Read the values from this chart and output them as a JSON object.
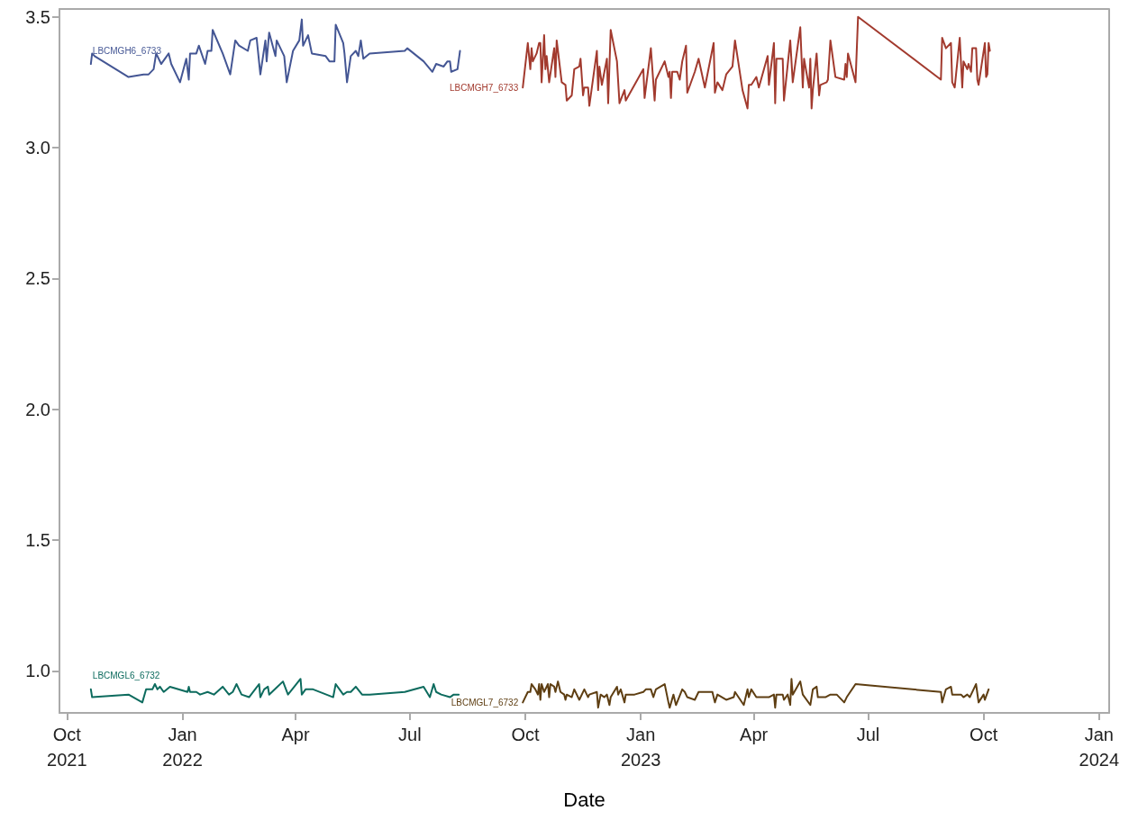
{
  "chart_data": {
    "type": "line",
    "xlabel": "Date",
    "xlim": [
      "2021-09-25",
      "2024-01-09"
    ],
    "ylim": [
      0.84,
      3.53
    ],
    "xticks": [
      {
        "value": "2021-10-01",
        "label": "Oct 2021"
      },
      {
        "value": "2022-01-01",
        "label": "Jan 2022"
      },
      {
        "value": "2022-04-01",
        "label": "Apr"
      },
      {
        "value": "2022-07-01",
        "label": "Jul"
      },
      {
        "value": "2022-10-01",
        "label": "Oct"
      },
      {
        "value": "2023-01-01",
        "label": "Jan 2023"
      },
      {
        "value": "2023-04-01",
        "label": "Apr"
      },
      {
        "value": "2023-07-01",
        "label": "Jul"
      },
      {
        "value": "2023-10-01",
        "label": "Oct"
      },
      {
        "value": "2024-01-01",
        "label": "Jan 2024"
      }
    ],
    "yticks": [
      {
        "value": 1,
        "label": "1.0"
      },
      1.5,
      {
        "value": 2,
        "label": "2.0"
      },
      2.5,
      {
        "value": 3,
        "label": "3.0"
      },
      3.5
    ],
    "grid": false,
    "legend": false,
    "marker": "none",
    "line_style": "solid",
    "series": [
      {
        "name": "LBCMGH6_6733",
        "color": "#445694",
        "x": [
          "2021-10-20",
          "2021-10-21",
          "2021-10-23",
          "2021-11-19",
          "2021-12-01",
          "2021-12-05",
          "2021-12-09",
          "2021-12-11",
          "2021-12-15",
          "2021-12-21",
          "2021-12-23",
          "2021-12-30",
          "2022-01-04",
          "2022-01-06",
          "2022-01-07",
          "2022-01-12",
          "2022-01-14",
          "2022-01-19",
          "2022-01-21",
          "2022-01-24",
          "2022-01-25",
          "2022-02-02",
          "2022-02-08",
          "2022-02-12",
          "2022-02-15",
          "2022-02-22",
          "2022-02-24",
          "2022-03-01",
          "2022-03-04",
          "2022-03-08",
          "2022-03-09",
          "2022-03-11",
          "2022-03-16",
          "2022-03-17",
          "2022-03-23",
          "2022-03-25",
          "2022-03-30",
          "2022-04-04",
          "2022-04-06",
          "2022-04-07",
          "2022-04-11",
          "2022-04-14",
          "2022-04-25",
          "2022-04-28",
          "2022-05-02",
          "2022-05-03",
          "2022-05-09",
          "2022-05-10",
          "2022-05-12",
          "2022-05-15",
          "2022-05-19",
          "2022-05-21",
          "2022-05-23",
          "2022-05-25",
          "2022-05-30",
          "2022-06-27",
          "2022-06-29",
          "2022-07-12",
          "2022-07-19",
          "2022-07-22",
          "2022-07-28",
          "2022-07-31",
          "2022-08-02",
          "2022-08-03",
          "2022-08-08",
          "2022-08-10"
        ],
        "values": [
          3.32,
          3.36,
          3.35,
          3.27,
          3.28,
          3.28,
          3.3,
          3.36,
          3.32,
          3.36,
          3.32,
          3.25,
          3.34,
          3.26,
          3.36,
          3.36,
          3.39,
          3.32,
          3.37,
          3.37,
          3.45,
          3.36,
          3.28,
          3.41,
          3.39,
          3.37,
          3.41,
          3.42,
          3.28,
          3.41,
          3.33,
          3.44,
          3.35,
          3.41,
          3.35,
          3.25,
          3.37,
          3.41,
          3.49,
          3.39,
          3.43,
          3.36,
          3.35,
          3.33,
          3.33,
          3.47,
          3.4,
          3.36,
          3.25,
          3.35,
          3.37,
          3.35,
          3.41,
          3.34,
          3.36,
          3.37,
          3.38,
          3.33,
          3.29,
          3.32,
          3.31,
          3.33,
          3.33,
          3.29,
          3.3,
          3.37
        ]
      },
      {
        "name": "LBCMGH7_6733",
        "color": "#a23a2e",
        "x": [
          "2022-09-29",
          "2022-10-03",
          "2022-10-05",
          "2022-10-06",
          "2022-10-07",
          "2022-10-10",
          "2022-10-12",
          "2022-10-13",
          "2022-10-14",
          "2022-10-16",
          "2022-10-17",
          "2022-10-18",
          "2022-10-20",
          "2022-10-24",
          "2022-10-25",
          "2022-10-26",
          "2022-10-30",
          "2022-11-02",
          "2022-11-03",
          "2022-11-07",
          "2022-11-09",
          "2022-11-13",
          "2022-11-14",
          "2022-11-16",
          "2022-11-17",
          "2022-11-20",
          "2022-11-21",
          "2022-11-27",
          "2022-11-28",
          "2022-11-29",
          "2022-12-01",
          "2022-12-05",
          "2022-12-06",
          "2022-12-08",
          "2022-12-13",
          "2022-12-15",
          "2022-12-19",
          "2022-12-20",
          "2023-01-03",
          "2023-01-04",
          "2023-01-09",
          "2023-01-12",
          "2023-01-13",
          "2023-01-20",
          "2023-01-23",
          "2023-01-24",
          "2023-01-25",
          "2023-01-26",
          "2023-01-30",
          "2023-02-01",
          "2023-02-03",
          "2023-02-06",
          "2023-02-07",
          "2023-02-13",
          "2023-02-16",
          "2023-02-21",
          "2023-02-28",
          "2023-03-01",
          "2023-03-03",
          "2023-03-07",
          "2023-03-10",
          "2023-03-15",
          "2023-03-17",
          "2023-03-23",
          "2023-03-27",
          "2023-03-28",
          "2023-03-30",
          "2023-04-03",
          "2023-04-05",
          "2023-04-12",
          "2023-04-13",
          "2023-04-17",
          "2023-04-18",
          "2023-04-19",
          "2023-04-24",
          "2023-04-25",
          "2023-04-30",
          "2023-05-02",
          "2023-05-08",
          "2023-05-10",
          "2023-05-11",
          "2023-05-15",
          "2023-05-16",
          "2023-05-17",
          "2023-05-18",
          "2023-05-21",
          "2023-05-23",
          "2023-05-24",
          "2023-05-29",
          "2023-05-30",
          "2023-06-01",
          "2023-06-05",
          "2023-06-12",
          "2023-06-13",
          "2023-06-14",
          "2023-06-15",
          "2023-06-21",
          "2023-06-23",
          "2023-08-28",
          "2023-08-29",
          "2023-09-01",
          "2023-09-05",
          "2023-09-06",
          "2023-09-08",
          "2023-09-12",
          "2023-09-14",
          "2023-09-15",
          "2023-09-18",
          "2023-09-19",
          "2023-09-21",
          "2023-09-22",
          "2023-09-25",
          "2023-09-26",
          "2023-09-27",
          "2023-10-02",
          "2023-10-03",
          "2023-10-04",
          "2023-10-05",
          "2023-10-06"
        ],
        "values": [
          3.23,
          3.4,
          3.3,
          3.38,
          3.33,
          3.36,
          3.4,
          3.4,
          3.25,
          3.43,
          3.3,
          3.35,
          3.25,
          3.38,
          3.27,
          3.41,
          3.25,
          3.24,
          3.18,
          3.2,
          3.3,
          3.31,
          3.34,
          3.2,
          3.23,
          3.23,
          3.16,
          3.37,
          3.22,
          3.31,
          3.24,
          3.34,
          3.17,
          3.45,
          3.33,
          3.17,
          3.22,
          3.18,
          3.3,
          3.19,
          3.38,
          3.18,
          3.26,
          3.33,
          3.27,
          3.29,
          3.19,
          3.29,
          3.29,
          3.26,
          3.33,
          3.39,
          3.21,
          3.29,
          3.34,
          3.23,
          3.4,
          3.21,
          3.25,
          3.22,
          3.28,
          3.31,
          3.41,
          3.22,
          3.15,
          3.24,
          3.24,
          3.27,
          3.23,
          3.35,
          3.24,
          3.4,
          3.17,
          3.34,
          3.34,
          3.18,
          3.41,
          3.25,
          3.46,
          3.23,
          3.34,
          3.23,
          3.34,
          3.15,
          3.22,
          3.36,
          3.2,
          3.24,
          3.25,
          3.26,
          3.41,
          3.27,
          3.26,
          3.32,
          3.27,
          3.36,
          3.25,
          3.5,
          3.26,
          3.42,
          3.38,
          3.4,
          3.25,
          3.23,
          3.42,
          3.23,
          3.33,
          3.3,
          3.32,
          3.29,
          3.38,
          3.38,
          3.26,
          3.24,
          3.4,
          3.27,
          3.28,
          3.4,
          3.37
        ]
      },
      {
        "name": "LBCMGL6_6732",
        "color": "#0d6b5e",
        "x": [
          "2021-10-20",
          "2021-10-21",
          "2021-11-19",
          "2021-11-30",
          "2021-12-03",
          "2021-12-08",
          "2021-12-10",
          "2021-12-12",
          "2021-12-14",
          "2021-12-17",
          "2021-12-22",
          "2022-01-05",
          "2022-01-06",
          "2022-01-07",
          "2022-01-12",
          "2022-01-15",
          "2022-01-21",
          "2022-01-26",
          "2022-02-02",
          "2022-02-07",
          "2022-02-10",
          "2022-02-13",
          "2022-02-17",
          "2022-02-23",
          "2022-03-03",
          "2022-03-04",
          "2022-03-07",
          "2022-03-10",
          "2022-03-11",
          "2022-03-22",
          "2022-03-26",
          "2022-04-05",
          "2022-04-06",
          "2022-04-09",
          "2022-04-15",
          "2022-05-01",
          "2022-05-03",
          "2022-05-09",
          "2022-05-12",
          "2022-05-15",
          "2022-05-19",
          "2022-05-24",
          "2022-05-30",
          "2022-06-27",
          "2022-07-12",
          "2022-07-17",
          "2022-07-20",
          "2022-07-22",
          "2022-07-26",
          "2022-08-02",
          "2022-08-05",
          "2022-08-09"
        ],
        "values": [
          0.93,
          0.9,
          0.91,
          0.88,
          0.93,
          0.93,
          0.95,
          0.93,
          0.94,
          0.92,
          0.94,
          0.92,
          0.94,
          0.92,
          0.92,
          0.91,
          0.92,
          0.91,
          0.94,
          0.91,
          0.92,
          0.95,
          0.91,
          0.9,
          0.95,
          0.9,
          0.93,
          0.94,
          0.91,
          0.96,
          0.91,
          0.97,
          0.91,
          0.93,
          0.93,
          0.9,
          0.95,
          0.91,
          0.92,
          0.92,
          0.94,
          0.91,
          0.91,
          0.92,
          0.94,
          0.9,
          0.95,
          0.92,
          0.91,
          0.9,
          0.91,
          0.91
        ]
      },
      {
        "name": "LBCMGL7_6732",
        "color": "#5e3e12",
        "x": [
          "2022-09-29",
          "2022-10-03",
          "2022-10-05",
          "2022-10-06",
          "2022-10-09",
          "2022-10-11",
          "2022-10-12",
          "2022-10-13",
          "2022-10-14",
          "2022-10-16",
          "2022-10-19",
          "2022-10-20",
          "2022-10-21",
          "2022-10-24",
          "2022-10-25",
          "2022-10-27",
          "2022-10-29",
          "2022-11-01",
          "2022-11-02",
          "2022-11-03",
          "2022-11-07",
          "2022-11-09",
          "2022-11-13",
          "2022-11-17",
          "2022-11-20",
          "2022-11-21",
          "2022-11-27",
          "2022-11-28",
          "2022-11-30",
          "2022-12-03",
          "2022-12-05",
          "2022-12-07",
          "2022-12-08",
          "2022-12-13",
          "2022-12-14",
          "2022-12-16",
          "2022-12-19",
          "2022-12-20",
          "2022-12-27",
          "2023-01-03",
          "2023-01-05",
          "2023-01-09",
          "2023-01-11",
          "2023-01-13",
          "2023-01-20",
          "2023-01-23",
          "2023-01-24",
          "2023-01-27",
          "2023-01-29",
          "2023-02-03",
          "2023-02-05",
          "2023-02-07",
          "2023-02-13",
          "2023-02-16",
          "2023-02-27",
          "2023-03-01",
          "2023-03-03",
          "2023-03-10",
          "2023-03-16",
          "2023-03-17",
          "2023-03-24",
          "2023-03-27",
          "2023-03-28",
          "2023-03-30",
          "2023-04-03",
          "2023-04-05",
          "2023-04-13",
          "2023-04-17",
          "2023-04-18",
          "2023-04-19",
          "2023-04-24",
          "2023-04-25",
          "2023-04-28",
          "2023-04-30",
          "2023-05-01",
          "2023-05-02",
          "2023-05-08",
          "2023-05-10",
          "2023-05-16",
          "2023-05-18",
          "2023-05-21",
          "2023-05-22",
          "2023-05-24",
          "2023-05-28",
          "2023-06-01",
          "2023-06-05",
          "2023-06-06",
          "2023-06-12",
          "2023-06-14",
          "2023-06-21",
          "2023-08-28",
          "2023-08-29",
          "2023-09-01",
          "2023-09-05",
          "2023-09-06",
          "2023-09-12",
          "2023-09-13",
          "2023-09-15",
          "2023-09-18",
          "2023-09-20",
          "2023-09-25",
          "2023-09-27",
          "2023-10-01",
          "2023-10-02",
          "2023-10-05"
        ],
        "values": [
          0.88,
          0.92,
          0.92,
          0.95,
          0.93,
          0.91,
          0.95,
          0.89,
          0.95,
          0.92,
          0.95,
          0.9,
          0.95,
          0.94,
          0.92,
          0.96,
          0.92,
          0.91,
          0.89,
          0.91,
          0.9,
          0.93,
          0.89,
          0.93,
          0.9,
          0.91,
          0.92,
          0.86,
          0.91,
          0.9,
          0.91,
          0.87,
          0.9,
          0.94,
          0.91,
          0.93,
          0.88,
          0.91,
          0.91,
          0.92,
          0.93,
          0.93,
          0.9,
          0.93,
          0.95,
          0.88,
          0.86,
          0.91,
          0.87,
          0.93,
          0.92,
          0.9,
          0.89,
          0.92,
          0.92,
          0.88,
          0.91,
          0.89,
          0.9,
          0.92,
          0.87,
          0.93,
          0.9,
          0.93,
          0.9,
          0.9,
          0.9,
          0.91,
          0.86,
          0.91,
          0.91,
          0.89,
          0.91,
          0.87,
          0.97,
          0.91,
          0.96,
          0.91,
          0.87,
          0.93,
          0.94,
          0.9,
          0.9,
          0.9,
          0.91,
          0.91,
          0.91,
          0.88,
          0.9,
          0.95,
          0.92,
          0.88,
          0.93,
          0.94,
          0.91,
          0.91,
          0.91,
          0.9,
          0.91,
          0.9,
          0.95,
          0.88,
          0.91,
          0.89,
          0.93
        ]
      }
    ]
  }
}
